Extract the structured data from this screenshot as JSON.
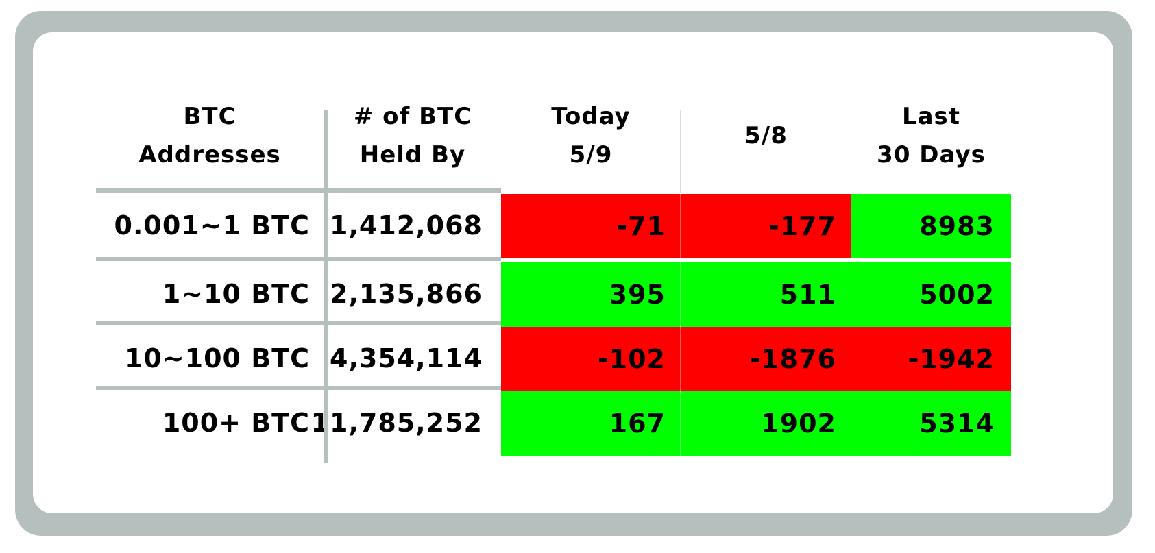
{
  "chart_data": {
    "type": "table",
    "headers": [
      [
        "BTC",
        "Addresses"
      ],
      [
        "# of BTC",
        "Held By"
      ],
      [
        "Today",
        "5/9"
      ],
      [
        "5/8"
      ],
      [
        "Last",
        "30 Days"
      ]
    ],
    "rows": [
      {
        "range": "0.001~1 BTC",
        "held": "1,412,068",
        "today": "-71",
        "prev": "-177",
        "month": "8983"
      },
      {
        "range": "1~10 BTC",
        "held": "2,135,866",
        "today": "395",
        "prev": "511",
        "month": "5002"
      },
      {
        "range": "10~100 BTC",
        "held": "4,354,114",
        "today": "-102",
        "prev": "-1876",
        "month": "-1942"
      },
      {
        "range": "100+ BTC",
        "held": "11,785,252",
        "today": "167",
        "prev": "1902",
        "month": "5314"
      }
    ],
    "colors": {
      "negative": "#ff0000",
      "positive": "#00ff00",
      "frame": "#b4bfbe"
    }
  }
}
